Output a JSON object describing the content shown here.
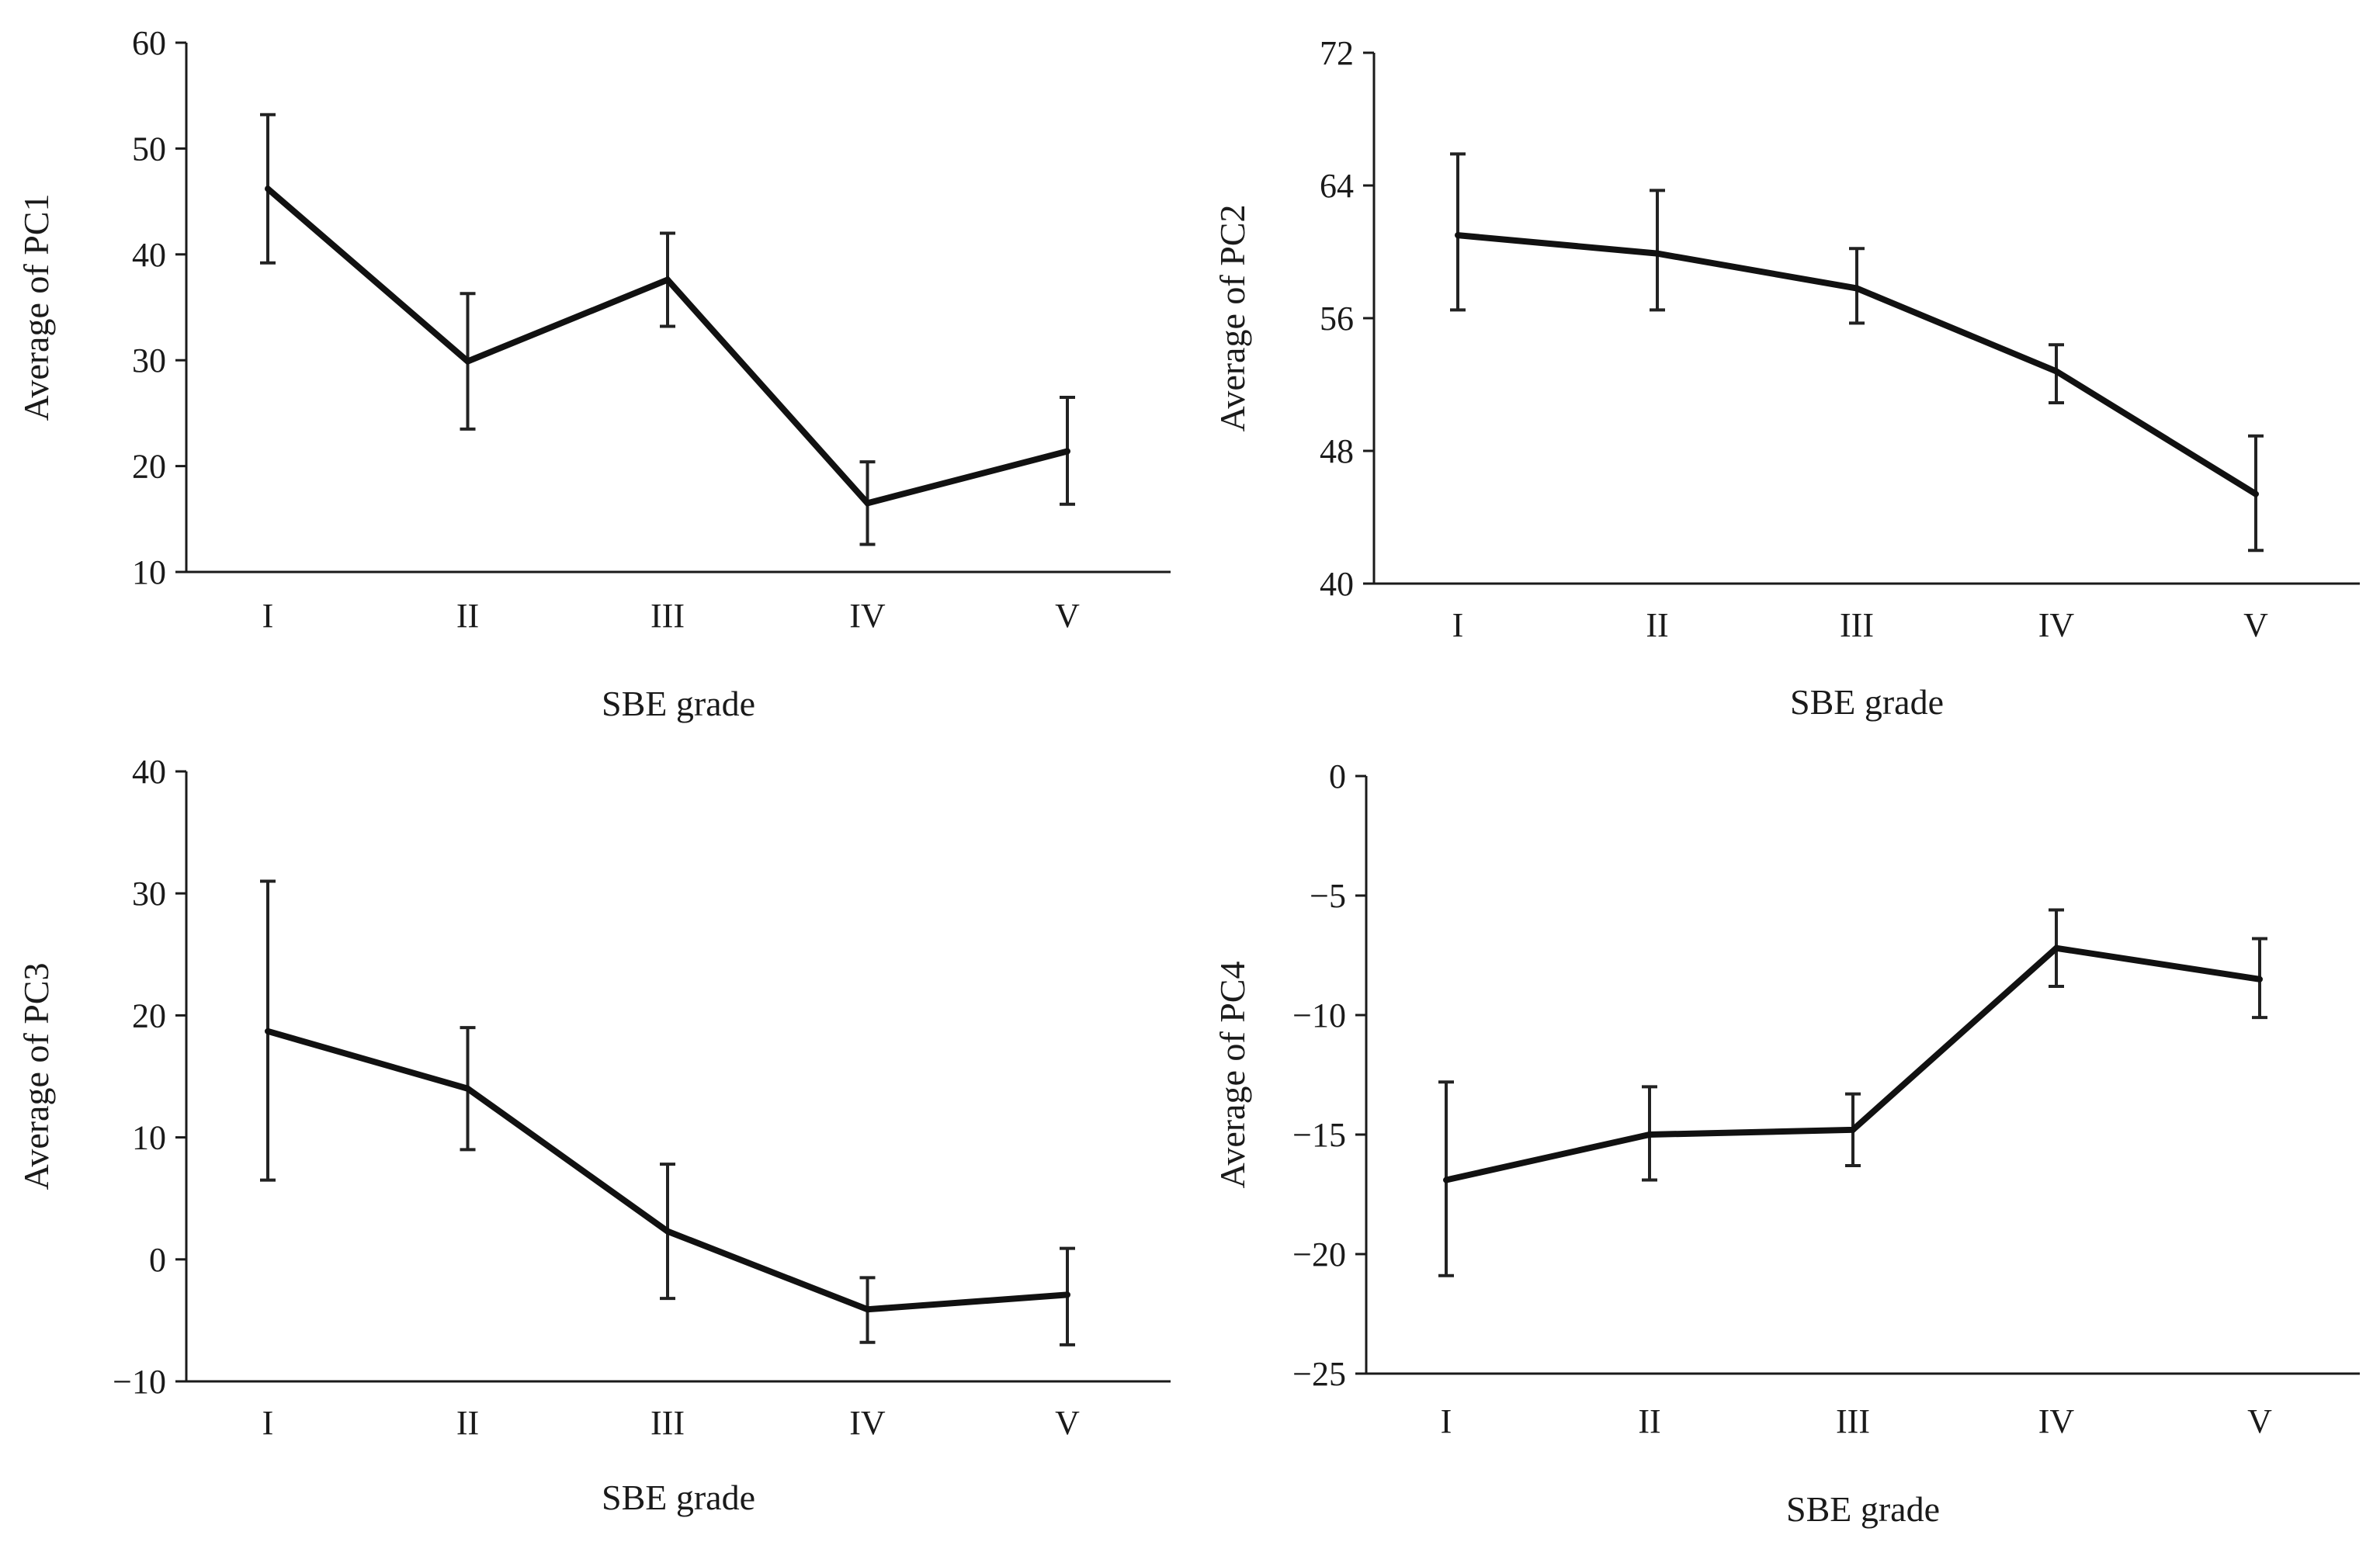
{
  "chart_data": [
    {
      "type": "line",
      "categories": [
        "I",
        "II",
        "III",
        "IV",
        "V"
      ],
      "values": [
        46.2,
        29.9,
        37.6,
        16.5,
        21.4
      ],
      "error_lower": [
        39.2,
        23.5,
        33.2,
        12.6,
        16.4
      ],
      "error_upper": [
        53.2,
        36.3,
        42.0,
        20.4,
        26.5
      ],
      "xlabel": "SBE grade",
      "ylabel": "Average of PC1",
      "ylim": [
        10,
        60
      ],
      "yticks": [
        "10",
        "20",
        "30",
        "40",
        "50",
        "60"
      ],
      "error_bar_color": "#7a7a7a"
    },
    {
      "type": "line",
      "categories": [
        "I",
        "II",
        "III",
        "IV",
        "V"
      ],
      "values": [
        61.0,
        59.9,
        57.8,
        52.8,
        45.4
      ],
      "error_lower": [
        56.5,
        56.5,
        55.7,
        50.9,
        42.0
      ],
      "error_upper": [
        65.9,
        63.7,
        60.2,
        54.4,
        48.9
      ],
      "xlabel": "SBE grade",
      "ylabel": "Average of PC2",
      "ylim": [
        40,
        72
      ],
      "yticks": [
        "40",
        "48",
        "56",
        "64",
        "72"
      ],
      "error_bar_color": "#222222"
    },
    {
      "type": "line",
      "categories": [
        "I",
        "II",
        "III",
        "IV",
        "V"
      ],
      "values": [
        18.7,
        14.0,
        2.3,
        -4.1,
        -2.9
      ],
      "error_lower": [
        6.5,
        9.0,
        -3.2,
        -6.8,
        -7.0
      ],
      "error_upper": [
        31.0,
        19.0,
        7.8,
        -1.5,
        0.9
      ],
      "xlabel": "SBE grade",
      "ylabel": "Average of PC3",
      "ylim": [
        -10,
        40
      ],
      "yticks": [
        "−10",
        "0",
        "10",
        "20",
        "30",
        "40"
      ],
      "error_bar_color": "#222222"
    },
    {
      "type": "line",
      "categories": [
        "I",
        "II",
        "III",
        "IV",
        "V"
      ],
      "values": [
        -16.9,
        -15.0,
        -14.8,
        -7.2,
        -8.5
      ],
      "error_lower": [
        -20.9,
        -16.9,
        -16.3,
        -8.8,
        -10.1
      ],
      "error_upper": [
        -12.8,
        -13.0,
        -13.3,
        -5.6,
        -6.8
      ],
      "xlabel": "SBE grade",
      "ylabel": "Average of PC4",
      "ylim": [
        -25,
        0
      ],
      "yticks": [
        "−25",
        "−20",
        "−15",
        "−10",
        "−5",
        "0"
      ],
      "error_bar_color": "#222222"
    }
  ]
}
